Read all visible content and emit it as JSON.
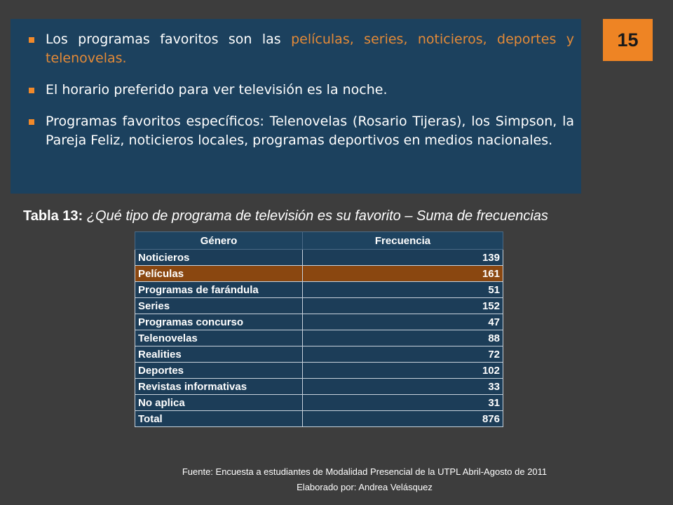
{
  "page_number": "15",
  "bullets": {
    "b1_prefix": "Los programas favoritos son las ",
    "b1_highlight": "películas, series, noticieros, deportes y telenovelas.",
    "b2": "El horario preferido para ver televisión es la noche.",
    "b3": "Programas favoritos específicos: Telenovelas (Rosario Tijeras), los Simpson, la Pareja Feliz, noticieros locales, programas deportivos en medios nacionales."
  },
  "caption": {
    "label": "Tabla 13:",
    "question": "¿Qué tipo de programa de televisión es su favorito – Suma de frecuencias"
  },
  "table": {
    "headers": [
      "Género",
      "Frecuencia"
    ],
    "rows": [
      {
        "genre": "Noticieros",
        "freq": "139"
      },
      {
        "genre": "Películas",
        "freq": "161"
      },
      {
        "genre": "Programas de farándula",
        "freq": "51"
      },
      {
        "genre": "Series",
        "freq": "152"
      },
      {
        "genre": "Programas concurso",
        "freq": "47"
      },
      {
        "genre": "Telenovelas",
        "freq": "88"
      },
      {
        "genre": "Realities",
        "freq": "72"
      },
      {
        "genre": "Deportes",
        "freq": "102"
      },
      {
        "genre": "Revistas informativas",
        "freq": "33"
      },
      {
        "genre": "No aplica",
        "freq": "31"
      },
      {
        "genre": "Total",
        "freq": "876"
      }
    ]
  },
  "source": {
    "line1": "Fuente: Encuesta a estudiantes de Modalidad Presencial de la UTPL Abril-Agosto de 2011",
    "line2": "Elaborado por: Andrea  Velásquez"
  },
  "colors": {
    "background": "#3d3d3d",
    "box": "#1c415e",
    "accent_orange": "#ee8424",
    "highlight_row": "#8a4710"
  }
}
